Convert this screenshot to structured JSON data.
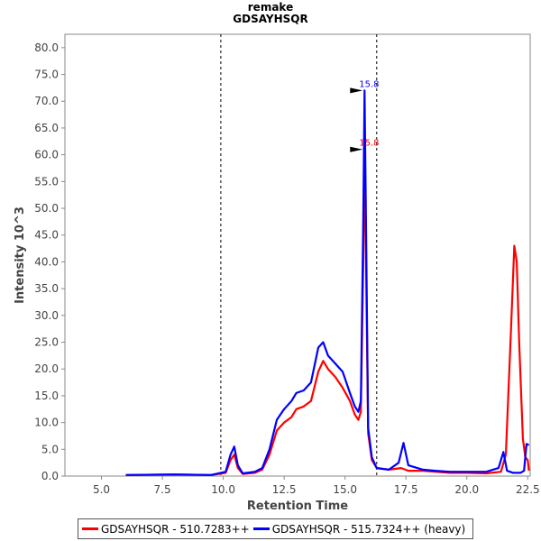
{
  "chart_data": {
    "type": "line",
    "title": "remake",
    "subtitle": "GDSAYHSQR",
    "xlabel": "Retention Time",
    "ylabel": "Intensity 10^3",
    "xlim": [
      3.5,
      22.6
    ],
    "ylim": [
      0,
      82.5
    ],
    "x_ticks": [
      "5.0",
      "7.5",
      "10.0",
      "12.5",
      "15.0",
      "17.5",
      "20.0",
      "22.5"
    ],
    "x_tick_values": [
      5.0,
      7.5,
      10.0,
      12.5,
      15.0,
      17.5,
      20.0,
      22.5
    ],
    "y_ticks": [
      "0.0",
      "5.0",
      "10.0",
      "15.0",
      "20.0",
      "25.0",
      "30.0",
      "35.0",
      "40.0",
      "45.0",
      "50.0",
      "55.0",
      "60.0",
      "65.0",
      "70.0",
      "75.0",
      "80.0"
    ],
    "y_tick_values": [
      0,
      5,
      10,
      15,
      20,
      25,
      30,
      35,
      40,
      45,
      50,
      55,
      60,
      65,
      70,
      75,
      80
    ],
    "grid": false,
    "legend_position": "bottom",
    "boundaries": [
      9.9,
      16.3
    ],
    "series": [
      {
        "name": "GDSAYHSQR - 510.7283++",
        "color": "#ff0000",
        "peak": {
          "x": 15.8,
          "y": 61.0,
          "label": "15.8"
        },
        "points": [
          [
            6.0,
            0.2
          ],
          [
            8.0,
            0.3
          ],
          [
            9.5,
            0.2
          ],
          [
            10.1,
            0.6
          ],
          [
            10.3,
            3.0
          ],
          [
            10.45,
            4.0
          ],
          [
            10.6,
            1.5
          ],
          [
            10.8,
            0.4
          ],
          [
            11.3,
            0.6
          ],
          [
            11.6,
            1.2
          ],
          [
            11.9,
            4.0
          ],
          [
            12.2,
            8.5
          ],
          [
            12.5,
            10.0
          ],
          [
            12.8,
            11.0
          ],
          [
            13.0,
            12.5
          ],
          [
            13.3,
            13.0
          ],
          [
            13.6,
            14.0
          ],
          [
            13.9,
            19.5
          ],
          [
            14.1,
            21.5
          ],
          [
            14.3,
            20.0
          ],
          [
            14.6,
            18.5
          ],
          [
            14.9,
            16.5
          ],
          [
            15.2,
            14.0
          ],
          [
            15.4,
            11.5
          ],
          [
            15.55,
            10.5
          ],
          [
            15.65,
            12.0
          ],
          [
            15.75,
            40.0
          ],
          [
            15.8,
            61.0
          ],
          [
            15.85,
            45.0
          ],
          [
            15.95,
            8.0
          ],
          [
            16.1,
            3.0
          ],
          [
            16.3,
            1.5
          ],
          [
            16.8,
            1.2
          ],
          [
            17.3,
            1.5
          ],
          [
            17.6,
            1.0
          ],
          [
            18.2,
            1.0
          ],
          [
            18.7,
            0.8
          ],
          [
            19.3,
            0.6
          ],
          [
            20.0,
            0.6
          ],
          [
            20.8,
            0.5
          ],
          [
            21.4,
            0.8
          ],
          [
            21.6,
            4.0
          ],
          [
            21.8,
            26.0
          ],
          [
            21.95,
            43.0
          ],
          [
            22.05,
            40.0
          ],
          [
            22.15,
            25.0
          ],
          [
            22.3,
            7.0
          ],
          [
            22.4,
            3.5
          ],
          [
            22.5,
            3.0
          ],
          [
            22.55,
            1.0
          ]
        ]
      },
      {
        "name": "GDSAYHSQR - 515.7324++ (heavy)",
        "color": "#0000ff",
        "peak": {
          "x": 15.8,
          "y": 72.0,
          "label": "15.8"
        },
        "points": [
          [
            6.0,
            0.2
          ],
          [
            8.0,
            0.3
          ],
          [
            9.5,
            0.2
          ],
          [
            10.1,
            0.8
          ],
          [
            10.3,
            4.0
          ],
          [
            10.45,
            5.5
          ],
          [
            10.6,
            2.0
          ],
          [
            10.8,
            0.5
          ],
          [
            11.3,
            0.8
          ],
          [
            11.6,
            1.5
          ],
          [
            11.9,
            5.0
          ],
          [
            12.2,
            10.5
          ],
          [
            12.5,
            12.5
          ],
          [
            12.8,
            14.0
          ],
          [
            13.0,
            15.5
          ],
          [
            13.3,
            16.0
          ],
          [
            13.6,
            17.5
          ],
          [
            13.9,
            24.0
          ],
          [
            14.1,
            25.0
          ],
          [
            14.3,
            22.5
          ],
          [
            14.6,
            21.0
          ],
          [
            14.9,
            19.5
          ],
          [
            15.2,
            15.5
          ],
          [
            15.4,
            13.0
          ],
          [
            15.55,
            12.0
          ],
          [
            15.65,
            14.0
          ],
          [
            15.75,
            48.0
          ],
          [
            15.8,
            72.0
          ],
          [
            15.85,
            52.0
          ],
          [
            15.95,
            9.0
          ],
          [
            16.1,
            3.5
          ],
          [
            16.3,
            1.5
          ],
          [
            16.8,
            1.2
          ],
          [
            17.2,
            2.5
          ],
          [
            17.4,
            6.2
          ],
          [
            17.6,
            2.0
          ],
          [
            18.2,
            1.2
          ],
          [
            18.7,
            1.0
          ],
          [
            19.3,
            0.8
          ],
          [
            20.0,
            0.8
          ],
          [
            20.8,
            0.8
          ],
          [
            21.3,
            1.5
          ],
          [
            21.5,
            4.5
          ],
          [
            21.65,
            1.0
          ],
          [
            21.9,
            0.6
          ],
          [
            22.2,
            0.6
          ],
          [
            22.35,
            1.0
          ],
          [
            22.45,
            6.0
          ],
          [
            22.55,
            5.8
          ]
        ]
      }
    ]
  }
}
